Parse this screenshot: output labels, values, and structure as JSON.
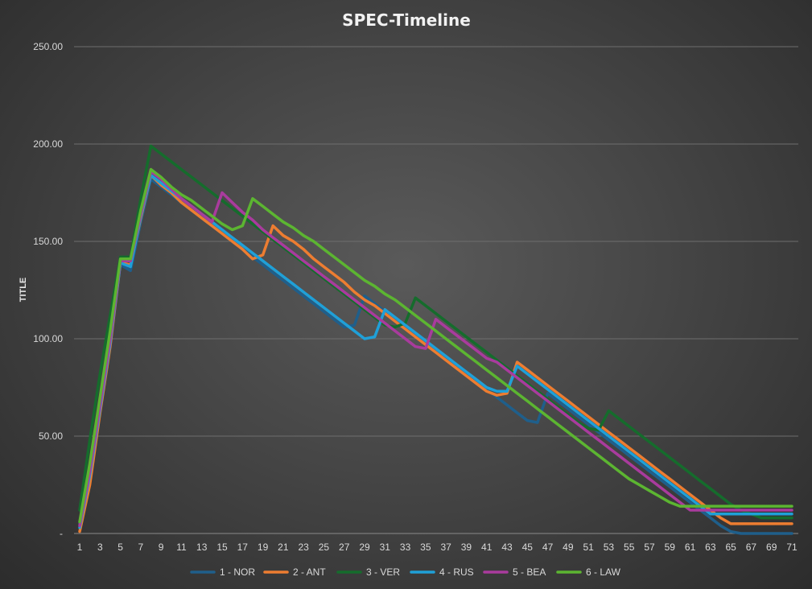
{
  "chart_data": {
    "type": "line",
    "title": "SPEC-Timeline",
    "xlabel": "",
    "ylabel": "TITLE",
    "x": [
      1,
      2,
      3,
      4,
      5,
      6,
      7,
      8,
      9,
      10,
      11,
      12,
      13,
      14,
      15,
      16,
      17,
      18,
      19,
      20,
      21,
      22,
      23,
      24,
      25,
      26,
      27,
      28,
      29,
      30,
      31,
      32,
      33,
      34,
      35,
      36,
      37,
      38,
      39,
      40,
      41,
      42,
      43,
      44,
      45,
      46,
      47,
      48,
      49,
      50,
      51,
      52,
      53,
      54,
      55,
      56,
      57,
      58,
      59,
      60,
      61,
      62,
      63,
      64,
      65,
      66,
      67,
      68,
      69,
      70,
      71
    ],
    "x_tick_labels": [
      "1",
      "3",
      "5",
      "7",
      "9",
      "11",
      "13",
      "15",
      "17",
      "19",
      "21",
      "23",
      "25",
      "27",
      "29",
      "31",
      "33",
      "35",
      "37",
      "39",
      "41",
      "43",
      "45",
      "47",
      "49",
      "51",
      "53",
      "55",
      "57",
      "59",
      "61",
      "63",
      "65",
      "67",
      "69",
      "71"
    ],
    "ylim": [
      0,
      250
    ],
    "y_tick_labels": [
      "-",
      "50.00",
      "100.00",
      "150.00",
      "200.00",
      "250.00"
    ],
    "grid": true,
    "legend_position": "bottom",
    "series": [
      {
        "name": "1 - NOR",
        "color": "#1f5f8b",
        "values": [
          5,
          28,
          65,
          98,
          138,
          135,
          160,
          182,
          178,
          174,
          170,
          166,
          162,
          158,
          154,
          150,
          146,
          142,
          138,
          134,
          130,
          126,
          122,
          118,
          114,
          110,
          106,
          107,
          122,
          118,
          114,
          110,
          106,
          102,
          98,
          94,
          90,
          86,
          82,
          78,
          74,
          70,
          66,
          62,
          58,
          57,
          72,
          68,
          64,
          60,
          56,
          52,
          48,
          44,
          40,
          36,
          32,
          28,
          24,
          20,
          16,
          12,
          8,
          4,
          1,
          0,
          0,
          0,
          0,
          0,
          0
        ]
      },
      {
        "name": "2 - ANT",
        "color": "#ed7d31",
        "values": [
          1,
          25,
          62,
          96,
          139,
          138,
          162,
          184,
          179,
          175,
          170,
          166,
          162,
          158,
          154,
          150,
          146,
          141,
          143,
          158,
          153,
          150,
          146,
          141,
          137,
          133,
          129,
          124,
          120,
          117,
          113,
          109,
          105,
          101,
          97,
          93,
          89,
          85,
          81,
          77,
          73,
          71,
          72,
          88,
          84,
          80,
          76,
          72,
          68,
          64,
          60,
          56,
          52,
          48,
          44,
          40,
          36,
          32,
          28,
          24,
          20,
          16,
          12,
          8,
          5,
          5,
          5,
          5,
          5,
          5,
          5
        ]
      },
      {
        "name": "3 - VER",
        "color": "#156c2c",
        "values": [
          12,
          48,
          82,
          112,
          142,
          142,
          172,
          199,
          195,
          191,
          187,
          183,
          179,
          175,
          171,
          167,
          163,
          159,
          155,
          151,
          147,
          143,
          139,
          135,
          131,
          127,
          123,
          119,
          115,
          111,
          107,
          106,
          108,
          121,
          117,
          113,
          109,
          105,
          101,
          97,
          93,
          89,
          85,
          81,
          77,
          73,
          69,
          65,
          61,
          57,
          54,
          53,
          63,
          59,
          55,
          51,
          47,
          43,
          39,
          35,
          31,
          27,
          23,
          19,
          15,
          12,
          10,
          8,
          8,
          8,
          8
        ]
      },
      {
        "name": "4 - RUS",
        "color": "#1fa0d8",
        "values": [
          3,
          30,
          64,
          98,
          139,
          137,
          163,
          184,
          180,
          176,
          172,
          168,
          164,
          160,
          156,
          152,
          148,
          144,
          140,
          136,
          132,
          128,
          124,
          120,
          116,
          112,
          108,
          104,
          100,
          101,
          115,
          111,
          107,
          103,
          99,
          95,
          91,
          87,
          83,
          79,
          75,
          73,
          73,
          86,
          82,
          78,
          74,
          70,
          66,
          62,
          58,
          54,
          50,
          46,
          42,
          38,
          34,
          30,
          26,
          22,
          18,
          14,
          10,
          10,
          10,
          10,
          10,
          10,
          10,
          10,
          10
        ]
      },
      {
        "name": "5 - BEA",
        "color": "#a93b9d",
        "values": [
          4,
          32,
          66,
          100,
          140,
          140,
          164,
          186,
          182,
          177,
          172,
          168,
          164,
          160,
          175,
          170,
          165,
          161,
          156,
          152,
          148,
          144,
          140,
          136,
          132,
          128,
          124,
          120,
          116,
          112,
          108,
          104,
          100,
          96,
          95,
          110,
          106,
          102,
          98,
          94,
          90,
          88,
          84,
          80,
          76,
          72,
          68,
          64,
          60,
          56,
          52,
          48,
          44,
          40,
          36,
          32,
          28,
          24,
          20,
          16,
          12,
          12,
          12,
          12,
          12,
          12,
          12,
          12,
          12,
          12,
          12
        ]
      },
      {
        "name": "6 - LAW",
        "color": "#5cb531",
        "values": [
          6,
          36,
          70,
          104,
          141,
          141,
          166,
          187,
          183,
          178,
          174,
          171,
          167,
          163,
          159,
          156,
          158,
          172,
          168,
          164,
          160,
          157,
          153,
          150,
          146,
          142,
          138,
          134,
          130,
          127,
          123,
          120,
          116,
          112,
          108,
          104,
          100,
          96,
          92,
          88,
          84,
          80,
          76,
          72,
          68,
          64,
          60,
          56,
          52,
          48,
          44,
          40,
          36,
          32,
          28,
          25,
          22,
          19,
          16,
          14,
          14,
          14,
          14,
          14,
          14,
          14,
          14,
          14,
          14,
          14,
          14
        ]
      }
    ]
  }
}
